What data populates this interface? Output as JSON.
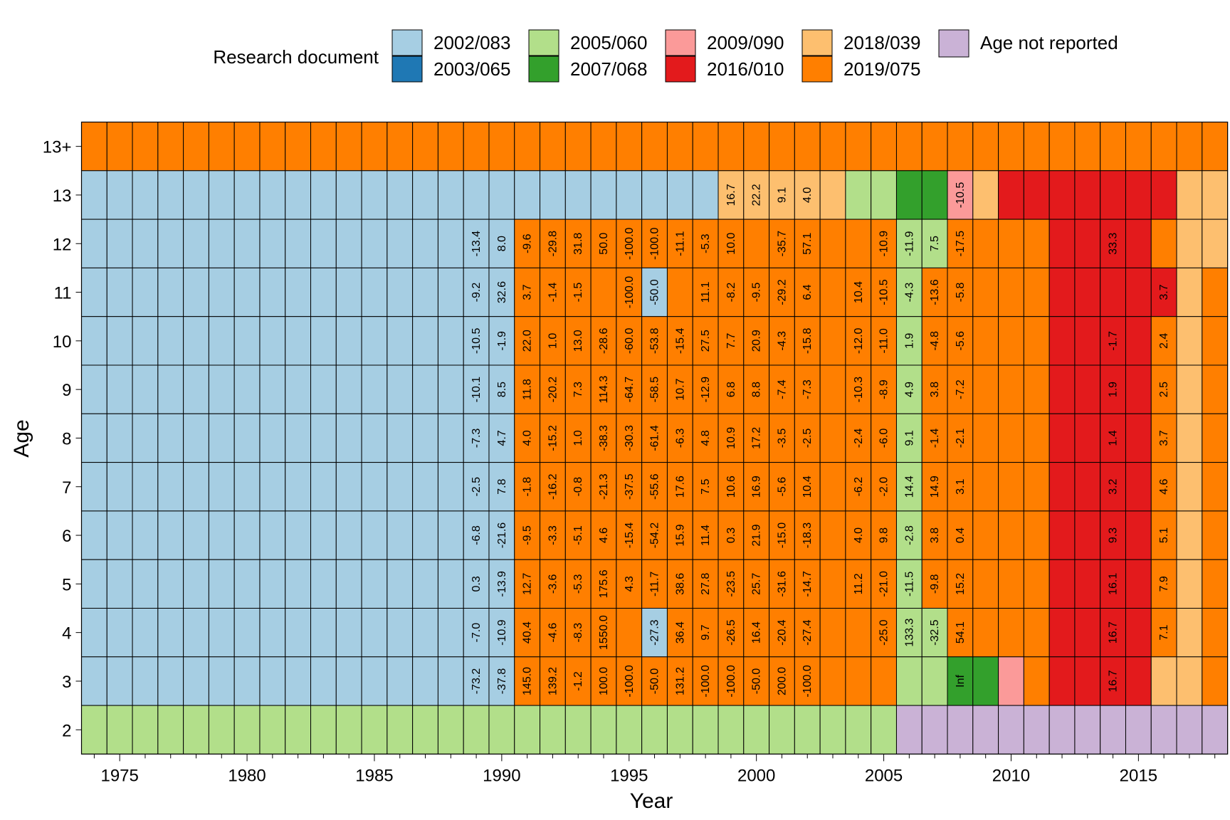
{
  "chart_data": {
    "type": "heatmap",
    "xlabel": "Year",
    "ylabel": "Age",
    "legend": {
      "title": "Research document",
      "placement": "top",
      "items": [
        {
          "label": "2002/083",
          "color": "#A6CEE3"
        },
        {
          "label": "2003/065",
          "color": "#1F78B4"
        },
        {
          "label": "2005/060",
          "color": "#B2DF8A"
        },
        {
          "label": "2007/068",
          "color": "#33A02C"
        },
        {
          "label": "2009/090",
          "color": "#FB9A99"
        },
        {
          "label": "2016/010",
          "color": "#E31A1C"
        },
        {
          "label": "2018/039",
          "color": "#FDBF6F"
        },
        {
          "label": "2019/075",
          "color": "#FF7F00"
        },
        {
          "label": "Age not reported",
          "color": "#CAB2D6"
        }
      ]
    },
    "codes": {
      "a": "2002/083",
      "b": "2003/065",
      "c": "2005/060",
      "d": "2007/068",
      "e": "2009/090",
      "f": "2016/010",
      "g": "2018/039",
      "h": "2019/075",
      "p": "Age not reported"
    },
    "year_range": [
      1974,
      2018
    ],
    "x_ticks": [
      1975,
      1980,
      1985,
      1990,
      1995,
      2000,
      2005,
      2010,
      2015
    ],
    "age_labels": [
      "13+",
      "13",
      "12",
      "11",
      "10",
      "9",
      "8",
      "7",
      "6",
      "5",
      "4",
      "3",
      "2"
    ],
    "documents": {
      "13+": "hhhhhhhhhhhhhhhhhhhhhhhhhhhhhhhhhhhhhhhhhhhhh",
      "13": "aaaaaaaaaaaaaaaaaaaaaaaaagggggccddegfffffffggpp",
      "12": "aaaaaaaaaaaaaaaaahhhhhhhhhhhhhhhcchhhhffffhgghh",
      "11": "aaaaaaaaaaaaaaaaahhhhhahhhhhhhhhchhhhhfffffghhh",
      "10": "aaaaaaaaaaaaaaaaahhhhhhhhhhhhhhhchhhhhffffhghhh",
      "9": "aaaaaaaaaaaaaaaaahhhhhhhhhhhhhhhchhhhhffffhghhh",
      "8": "aaaaaaaaaaaaaaaaahhhhhhhhhhhhhhhchhhhhffffhghhh",
      "7": "aaaaaaaaaaaaaaaaahhhhhhhhhhhhhhhchhhhhffffhghhh",
      "6": "aaaaaaaaaaaaaaaaahhhhhhhhhhhhhhhchhhhhffffhghhh",
      "5": "aaaaaaaaaaaaaaaaahhhhhhhhhhhhhhhchhhhhffffhghhh",
      "4": "aaaaaaaaaaaaaaaaahhhhhahhhhhhhhhcchhhhffffhghhh",
      "3": "aaaaaaaaaaaaaaaaahhhhhhhhhhhhhhhccddehffffgghhh",
      "2": "ccccccccccccccccccccccccccccccccpppppppppppppp"
    },
    "labels": {
      "13": {
        "1999": "16.7",
        "2000": "22.2",
        "2001": "9.1",
        "2002": "4.0",
        "2008": "-10.5"
      },
      "12": {
        "1989": "-13.4",
        "1990": "8.0",
        "1991": "-9.6",
        "1992": "-29.8",
        "1993": "31.8",
        "1994": "50.0",
        "1995": "-100.0",
        "1996": "-100.0",
        "1997": "-11.1",
        "1998": "-5.3",
        "1999": "10.0",
        "2001": "-35.7",
        "2002": "57.1",
        "2005": "-10.9",
        "2006": "-11.9",
        "2007": "7.5",
        "2008": "-17.5",
        "2014": "33.3"
      },
      "11": {
        "1989": "-9.2",
        "1990": "32.6",
        "1991": "3.7",
        "1992": "-1.4",
        "1993": "-1.5",
        "1995": "-100.0",
        "1996": "-50.0",
        "1998": "11.1",
        "1999": "-8.2",
        "2000": "-9.5",
        "2001": "-29.2",
        "2002": "6.4",
        "2004": "10.4",
        "2005": "-10.5",
        "2006": "-4.3",
        "2007": "-13.6",
        "2008": "-5.8",
        "2016": "3.7"
      },
      "10": {
        "1989": "-10.5",
        "1990": "-1.9",
        "1991": "22.0",
        "1992": "1.0",
        "1993": "13.0",
        "1994": "-28.6",
        "1995": "-60.0",
        "1996": "-53.8",
        "1997": "-15.4",
        "1998": "27.5",
        "1999": "7.7",
        "2000": "20.9",
        "2001": "-4.3",
        "2002": "-15.8",
        "2004": "-12.0",
        "2005": "-11.0",
        "2006": "1.9",
        "2007": "-4.8",
        "2008": "-5.6",
        "2014": "-1.7",
        "2016": "2.4"
      },
      "9": {
        "1989": "-10.1",
        "1990": "8.5",
        "1991": "11.8",
        "1992": "-20.2",
        "1993": "7.3",
        "1994": "114.3",
        "1995": "-64.7",
        "1996": "-58.5",
        "1997": "10.7",
        "1998": "-12.9",
        "1999": "6.8",
        "2000": "8.8",
        "2001": "-7.4",
        "2002": "-7.3",
        "2004": "-10.3",
        "2005": "-8.9",
        "2006": "4.9",
        "2007": "3.8",
        "2008": "-7.2",
        "2014": "1.9",
        "2016": "2.5"
      },
      "8": {
        "1989": "-7.3",
        "1990": "4.7",
        "1991": "4.0",
        "1992": "-15.2",
        "1993": "1.0",
        "1994": "-38.3",
        "1995": "-30.3",
        "1996": "-61.4",
        "1997": "-6.3",
        "1998": "4.8",
        "1999": "10.9",
        "2000": "17.2",
        "2001": "-3.5",
        "2002": "-2.5",
        "2004": "-2.4",
        "2005": "-6.0",
        "2006": "9.1",
        "2007": "-1.4",
        "2008": "-2.1",
        "2014": "1.4",
        "2016": "3.7"
      },
      "7": {
        "1989": "-2.5",
        "1990": "7.8",
        "1991": "-1.8",
        "1992": "-16.2",
        "1993": "-0.8",
        "1994": "-21.3",
        "1995": "-37.5",
        "1996": "-55.6",
        "1997": "17.6",
        "1998": "7.5",
        "1999": "10.6",
        "2000": "16.9",
        "2001": "-5.6",
        "2002": "10.4",
        "2004": "-6.2",
        "2005": "-2.0",
        "2006": "14.4",
        "2007": "14.9",
        "2008": "3.1",
        "2014": "3.2",
        "2016": "4.6"
      },
      "6": {
        "1989": "-6.8",
        "1990": "-21.6",
        "1991": "-9.5",
        "1992": "-3.3",
        "1993": "-5.1",
        "1994": "4.6",
        "1995": "-15.4",
        "1996": "-54.2",
        "1997": "15.9",
        "1998": "11.4",
        "1999": "0.3",
        "2000": "21.9",
        "2001": "-15.0",
        "2002": "-18.3",
        "2004": "4.0",
        "2005": "9.8",
        "2006": "-2.8",
        "2007": "3.8",
        "2008": "0.4",
        "2014": "9.3",
        "2016": "5.1"
      },
      "5": {
        "1989": "0.3",
        "1990": "-13.9",
        "1991": "12.7",
        "1992": "-3.6",
        "1993": "-5.3",
        "1994": "175.6",
        "1995": "4.3",
        "1996": "-11.7",
        "1997": "38.6",
        "1998": "27.8",
        "1999": "-23.5",
        "2000": "25.7",
        "2001": "-31.6",
        "2002": "-14.7",
        "2004": "11.2",
        "2005": "-21.0",
        "2006": "-11.5",
        "2007": "-9.8",
        "2008": "15.2",
        "2014": "16.1",
        "2016": "7.9"
      },
      "4": {
        "1989": "-7.0",
        "1990": "-10.9",
        "1991": "40.4",
        "1992": "-4.6",
        "1993": "-8.3",
        "1994": "1550.0",
        "1996": "-27.3",
        "1997": "36.4",
        "1998": "9.7",
        "1999": "-26.5",
        "2000": "16.4",
        "2001": "-20.4",
        "2002": "-27.4",
        "2005": "-25.0",
        "2006": "133.3",
        "2007": "-32.5",
        "2008": "54.1",
        "2014": "16.7",
        "2016": "7.1"
      },
      "3": {
        "1989": "-73.2",
        "1990": "-37.8",
        "1991": "145.0",
        "1992": "139.2",
        "1993": "-1.2",
        "1994": "100.0",
        "1995": "-100.0",
        "1996": "-50.0",
        "1997": "131.2",
        "1998": "-100.0",
        "1999": "-100.0",
        "2000": "-50.0",
        "2001": "200.0",
        "2002": "-100.0",
        "2008": "Inf",
        "2014": "16.7"
      }
    }
  }
}
